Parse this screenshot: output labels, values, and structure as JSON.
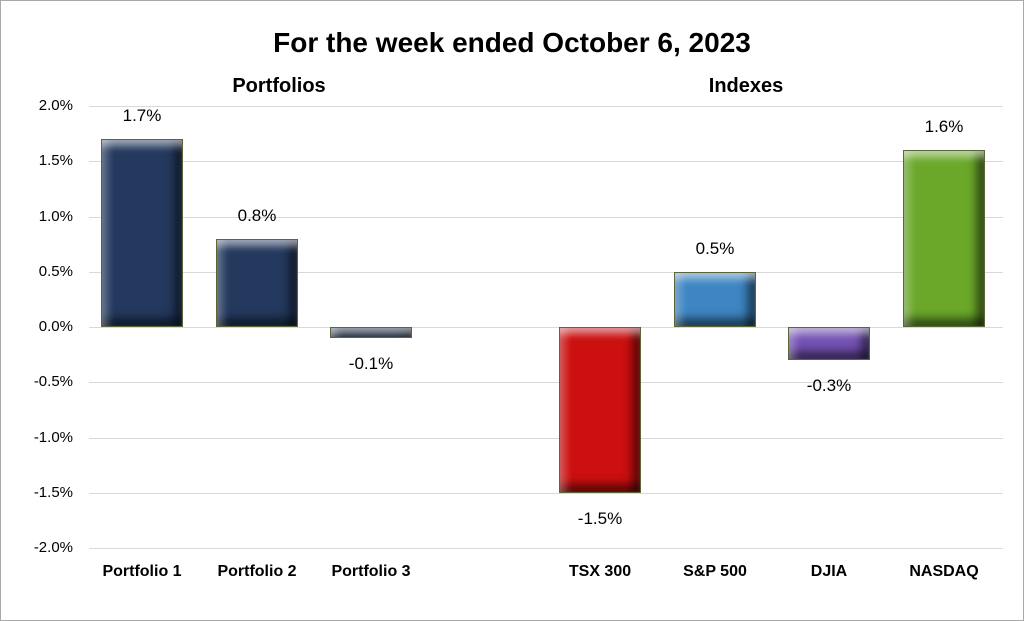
{
  "chart_data": {
    "type": "bar",
    "title": "For the week ended October 6, 2023",
    "xlabel": "",
    "ylabel": "",
    "ylim": [
      -2.0,
      2.0
    ],
    "ytick_step": 0.5,
    "grid": true,
    "gridline_color": "#d9d9d9",
    "legend": "none",
    "bar_outline_color": "#5a6639",
    "groups": [
      {
        "label": "Portfolios",
        "series": [
          {
            "category": "Portfolio 1",
            "value": 1.7,
            "data_label": "1.7%",
            "color": "#24395e"
          },
          {
            "category": "Portfolio 2",
            "value": 0.8,
            "data_label": "0.8%",
            "color": "#24395e"
          },
          {
            "category": "Portfolio 3",
            "value": -0.1,
            "data_label": "-0.1%",
            "color": "#24395e"
          }
        ]
      },
      {
        "label": "Indexes",
        "series": [
          {
            "category": "TSX 300",
            "value": -1.5,
            "data_label": "-1.5%",
            "color": "#cc0f0f"
          },
          {
            "category": "S&P 500",
            "value": 0.5,
            "data_label": "0.5%",
            "color": "#3e86c3"
          },
          {
            "category": "DJIA",
            "value": -0.3,
            "data_label": "-0.3%",
            "color": "#7452b4"
          },
          {
            "category": "NASDAQ",
            "value": 1.6,
            "data_label": "1.6%",
            "color": "#6ba82a"
          }
        ]
      }
    ],
    "y_ticks": [
      {
        "value": 2.0,
        "label": "2.0%"
      },
      {
        "value": 1.5,
        "label": "1.5%"
      },
      {
        "value": 1.0,
        "label": "1.0%"
      },
      {
        "value": 0.5,
        "label": "0.5%"
      },
      {
        "value": 0.0,
        "label": "0.0%"
      },
      {
        "value": -0.5,
        "label": "-0.5%"
      },
      {
        "value": -1.0,
        "label": "-1.0%"
      },
      {
        "value": -1.5,
        "label": "-1.5%"
      },
      {
        "value": -2.0,
        "label": "-2.0%"
      }
    ]
  }
}
